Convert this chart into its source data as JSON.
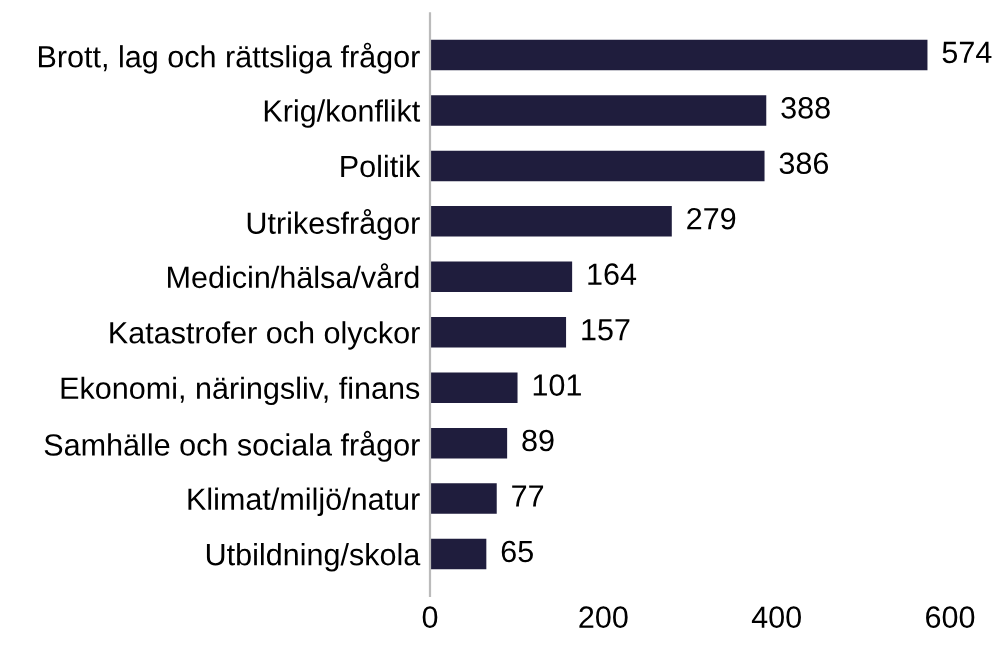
{
  "chart_data": {
    "type": "bar",
    "orientation": "horizontal",
    "categories": [
      "Brott, lag och rättsliga frågor",
      "Krig/konflikt",
      "Politik",
      "Utrikesfrågor",
      "Medicin/hälsa/vård",
      "Katastrofer och olyckor",
      "Ekonomi, näringsliv, finans",
      "Samhälle och sociala frågor",
      "Klimat/miljö/natur",
      "Utbildning/skola"
    ],
    "values": [
      574,
      388,
      386,
      279,
      164,
      157,
      101,
      89,
      77,
      65
    ],
    "color": "#1f1d3d",
    "xlim": [
      0,
      600
    ],
    "xticks": [
      0,
      200,
      400,
      600
    ],
    "data_labels": true,
    "grid": false
  }
}
